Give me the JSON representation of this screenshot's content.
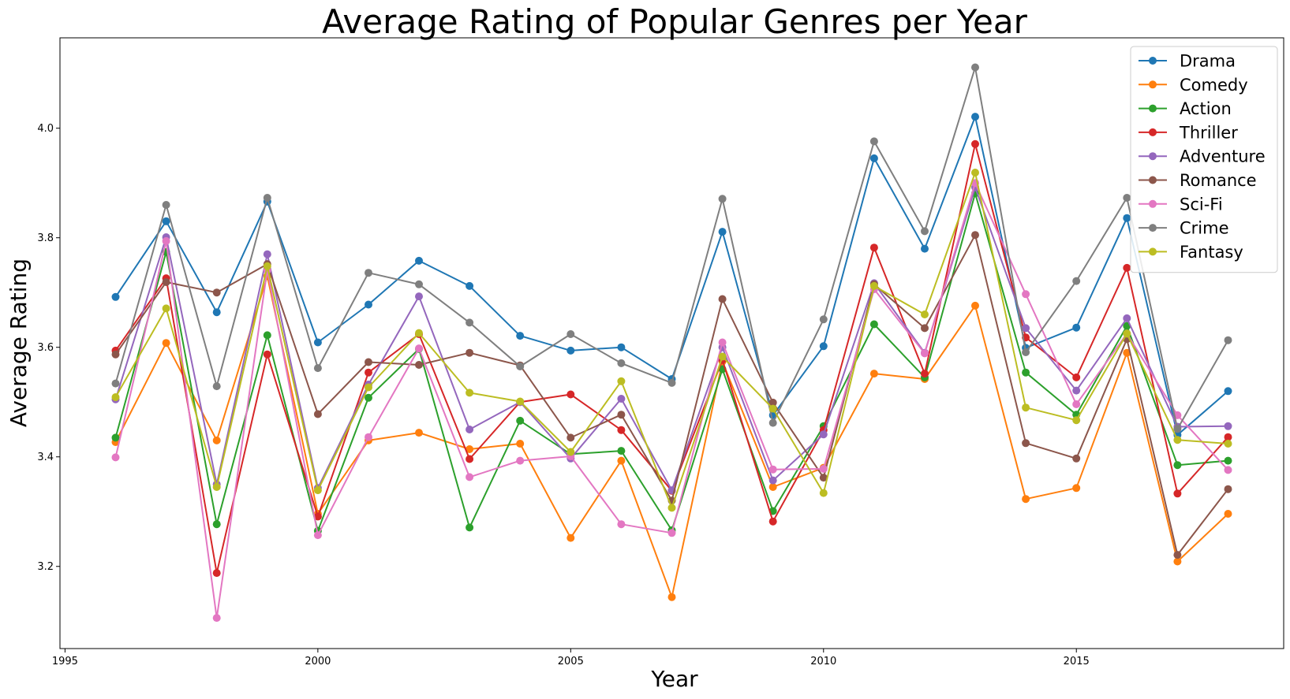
{
  "chart_data": {
    "type": "line",
    "title": "Average Rating of Popular Genres per Year",
    "xlabel": "Year",
    "ylabel": "Average Rating",
    "xlim": [
      1994.9,
      2019.1
    ],
    "ylim": [
      3.05,
      4.165
    ],
    "xticks": [
      1995,
      2000,
      2005,
      2010,
      2015
    ],
    "yticks": [
      3.2,
      3.4,
      3.6,
      3.8,
      4.0
    ],
    "xtick_labels": [
      "1995",
      "2000",
      "2005",
      "2010",
      "2015"
    ],
    "ytick_labels": [
      "3.2",
      "3.4",
      "3.6",
      "3.8",
      "4.0"
    ],
    "grid": false,
    "legend_position": "top-right",
    "x": [
      1996,
      1997,
      1998,
      1999,
      2000,
      2001,
      2002,
      2003,
      2004,
      2005,
      2006,
      2007,
      2008,
      2009,
      2010,
      2011,
      2012,
      2013,
      2014,
      2015,
      2016,
      2017,
      2018
    ],
    "series": [
      {
        "name": "Drama",
        "color": "#1f77b4",
        "values": [
          3.692,
          3.83,
          3.664,
          3.866,
          3.609,
          3.678,
          3.758,
          3.712,
          3.621,
          3.594,
          3.6,
          3.542,
          3.811,
          3.476,
          3.602,
          3.945,
          3.78,
          4.021,
          3.599,
          3.636,
          3.836,
          3.44,
          3.52
        ]
      },
      {
        "name": "Comedy",
        "color": "#ff7f0e",
        "values": [
          3.427,
          3.608,
          3.43,
          3.73,
          3.296,
          3.43,
          3.444,
          3.414,
          3.424,
          3.252,
          3.393,
          3.144,
          3.574,
          3.345,
          3.38,
          3.552,
          3.542,
          3.676,
          3.323,
          3.343,
          3.59,
          3.209,
          3.296
        ]
      },
      {
        "name": "Action",
        "color": "#2ca02c",
        "values": [
          3.435,
          3.774,
          3.277,
          3.622,
          3.265,
          3.508,
          3.597,
          3.271,
          3.466,
          3.405,
          3.411,
          3.266,
          3.56,
          3.301,
          3.456,
          3.642,
          3.545,
          3.881,
          3.554,
          3.477,
          3.639,
          3.385,
          3.393
        ]
      },
      {
        "name": "Thriller",
        "color": "#d62728",
        "values": [
          3.594,
          3.726,
          3.188,
          3.587,
          3.291,
          3.554,
          3.624,
          3.396,
          3.5,
          3.514,
          3.449,
          3.338,
          3.577,
          3.282,
          3.449,
          3.782,
          3.552,
          3.971,
          3.618,
          3.545,
          3.745,
          3.333,
          3.436
        ]
      },
      {
        "name": "Adventure",
        "color": "#9467bd",
        "values": [
          3.505,
          3.801,
          3.35,
          3.77,
          3.343,
          3.532,
          3.693,
          3.45,
          3.5,
          3.397,
          3.506,
          3.339,
          3.6,
          3.357,
          3.441,
          3.717,
          3.59,
          3.892,
          3.635,
          3.521,
          3.653,
          3.455,
          3.456
        ]
      },
      {
        "name": "Romance",
        "color": "#8c564b",
        "values": [
          3.587,
          3.719,
          3.7,
          3.752,
          3.478,
          3.573,
          3.568,
          3.59,
          3.567,
          3.435,
          3.477,
          3.32,
          3.688,
          3.499,
          3.362,
          3.715,
          3.635,
          3.805,
          3.425,
          3.397,
          3.615,
          3.221,
          3.341
        ]
      },
      {
        "name": "Sci-Fi",
        "color": "#e377c2",
        "values": [
          3.399,
          3.794,
          3.106,
          3.741,
          3.257,
          3.436,
          3.598,
          3.363,
          3.393,
          3.401,
          3.277,
          3.261,
          3.609,
          3.377,
          3.378,
          3.706,
          3.589,
          3.9,
          3.697,
          3.496,
          3.625,
          3.476,
          3.376
        ]
      },
      {
        "name": "Crime",
        "color": "#7f7f7f",
        "values": [
          3.534,
          3.86,
          3.529,
          3.873,
          3.562,
          3.736,
          3.715,
          3.645,
          3.565,
          3.624,
          3.571,
          3.535,
          3.871,
          3.462,
          3.651,
          3.976,
          3.812,
          4.111,
          3.591,
          3.721,
          3.873,
          3.451,
          3.613
        ]
      },
      {
        "name": "Fantasy",
        "color": "#bcbd22",
        "values": [
          3.509,
          3.671,
          3.345,
          3.748,
          3.339,
          3.527,
          3.626,
          3.517,
          3.501,
          3.409,
          3.538,
          3.307,
          3.583,
          3.488,
          3.334,
          3.712,
          3.66,
          3.919,
          3.49,
          3.467,
          3.625,
          3.431,
          3.424
        ]
      }
    ]
  }
}
